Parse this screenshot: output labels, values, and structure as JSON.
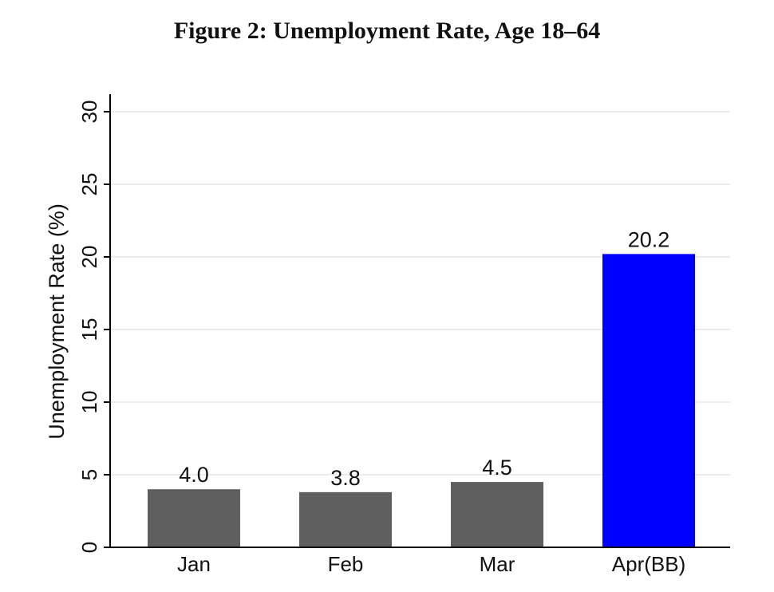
{
  "chart_data": {
    "type": "bar",
    "title": "Figure 2: Unemployment Rate, Age 18–64",
    "xlabel": "",
    "ylabel": "Unemployment Rate (%)",
    "categories": [
      "Jan",
      "Feb",
      "Mar",
      "Apr(BB)"
    ],
    "values": [
      4.0,
      3.8,
      4.5,
      20.2
    ],
    "value_labels": [
      "4.0",
      "3.8",
      "4.5",
      "20.2"
    ],
    "bar_colors": [
      "#5f5f5f",
      "#5f5f5f",
      "#5f5f5f",
      "#0000ff"
    ],
    "ylim": [
      0,
      30
    ],
    "yticks": [
      0,
      5,
      10,
      15,
      20,
      25,
      30
    ],
    "grid": true,
    "grid_color": "#e6e6e6",
    "legend": "none"
  }
}
